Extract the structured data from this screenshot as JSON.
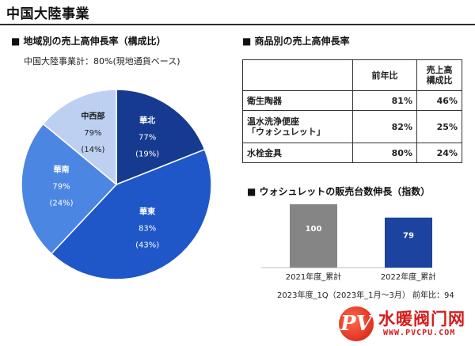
{
  "page": {
    "title": "中国大陸事業"
  },
  "region_section": {
    "title": "■ 地域別の売上高伸長率（構成比）",
    "subtitle": "中国大陸事業計：80%(現地通貨ベース)"
  },
  "product_section": {
    "title": "■ 商品別の売上高伸長率"
  },
  "washlet_section": {
    "title": "■ ウォシュレットの販売台数伸長（指数）"
  },
  "footnote": "2023年度_1Q（2023年_1月〜3月）  前年比：94",
  "logo": {
    "main": "水暖阀门网",
    "sub": "WWW.PVCPU.COM",
    "mark": "PV"
  },
  "chart_data": [
    {
      "type": "pie",
      "title": "",
      "slices": [
        {
          "name": "華北",
          "growth": "77%",
          "share_label": "(19%)",
          "value": 19,
          "color": "#163a8f"
        },
        {
          "name": "華東",
          "growth": "83%",
          "share_label": "(43%)",
          "value": 43,
          "color": "#1f57c8"
        },
        {
          "name": "華南",
          "growth": "79%",
          "share_label": "(24%)",
          "value": 24,
          "color": "#4c86e3"
        },
        {
          "name": "中西部",
          "growth": "79%",
          "share_label": "(14%)",
          "value": 14,
          "color": "#bdd0f2"
        }
      ]
    },
    {
      "type": "table",
      "columns": [
        "",
        "前年比",
        "売上高\n構成比"
      ],
      "rows": [
        {
          "name": "衛生陶器",
          "yoy": "81%",
          "share": "46%"
        },
        {
          "name": "温水洗浄便座\n「ウォシュレット」",
          "yoy": "82%",
          "share": "25%"
        },
        {
          "name": "水栓金具",
          "yoy": "80%",
          "share": "24%"
        }
      ]
    },
    {
      "type": "bar",
      "title": "",
      "categories": [
        "2021年度_累計",
        "2022年度_累計"
      ],
      "values": [
        100,
        79
      ],
      "colors": [
        "#858585",
        "#1d43a0"
      ],
      "ylim": [
        0,
        100
      ]
    }
  ]
}
